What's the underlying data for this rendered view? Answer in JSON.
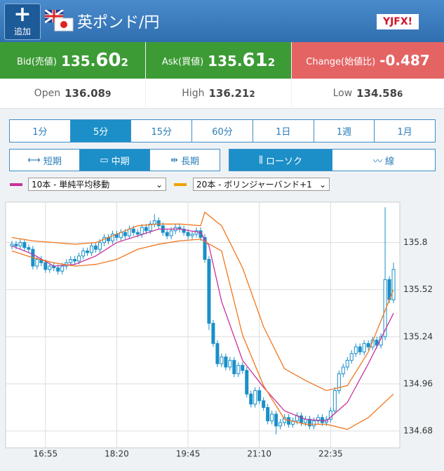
{
  "header": {
    "add_label": "追加",
    "pair": "英ポンド/円",
    "logo": "YJFX!"
  },
  "quotes": {
    "bid": {
      "label": "Bid(売値)",
      "value": [
        "135.",
        "60",
        "2"
      ]
    },
    "ask": {
      "label": "Ask(買値)",
      "value": [
        "135.",
        "61",
        "2"
      ]
    },
    "change": {
      "label": "Change(始値比)",
      "value": "-0.487"
    }
  },
  "stats": [
    {
      "label": "Open",
      "value": [
        "136.08",
        "9"
      ]
    },
    {
      "label": "High",
      "value": [
        "136.21",
        "2"
      ]
    },
    {
      "label": "Low",
      "value": [
        "134.58",
        "6"
      ]
    }
  ],
  "timeframes": {
    "items": [
      "1分",
      "5分",
      "15分",
      "60分",
      "1日",
      "1週",
      "1月"
    ],
    "selected": 1
  },
  "ranges": {
    "items": [
      "短期",
      "中期",
      "長期"
    ],
    "selected": 1
  },
  "styles": {
    "items": [
      "ローソク",
      "線"
    ],
    "selected": 0
  },
  "indicators": [
    {
      "label": "10本 - 単純平均移動",
      "color": "#c8329a"
    },
    {
      "label": "20本 - ボリンジャーバンド+1",
      "color": "#f0a000"
    }
  ],
  "chart_data": {
    "type": "candlestick",
    "color": "#1a8fc8",
    "x": [
      0,
      1,
      2,
      3,
      4,
      5,
      6,
      7,
      8,
      9,
      10,
      11,
      12,
      13,
      14,
      15,
      16,
      17,
      18,
      19,
      20,
      21,
      22,
      23,
      24,
      25,
      26,
      27,
      28,
      29,
      30,
      31,
      32,
      33,
      34,
      35,
      36,
      37,
      38,
      39,
      40,
      41,
      42,
      43,
      44,
      45,
      46,
      47,
      48,
      49,
      50,
      51,
      52,
      53,
      54,
      55,
      56,
      57,
      58,
      59,
      60,
      61,
      62,
      63,
      64,
      65,
      66,
      67,
      68,
      69,
      70,
      71,
      72,
      73,
      74,
      75,
      76,
      77,
      78,
      79,
      80,
      81,
      82,
      83,
      84,
      85,
      86,
      87,
      88,
      89,
      90,
      91
    ],
    "open": [
      135.78,
      135.79,
      135.78,
      135.8,
      135.77,
      135.76,
      135.66,
      135.7,
      135.68,
      135.64,
      135.66,
      135.65,
      135.63,
      135.66,
      135.68,
      135.7,
      135.69,
      135.72,
      135.75,
      135.74,
      135.78,
      135.76,
      135.8,
      135.83,
      135.81,
      135.85,
      135.83,
      135.86,
      135.84,
      135.88,
      135.86,
      135.85,
      135.89,
      135.87,
      135.91,
      135.93,
      135.9,
      135.86,
      135.84,
      135.87,
      135.89,
      135.88,
      135.86,
      135.84,
      135.85,
      135.87,
      135.83,
      135.7,
      135.32,
      135.2,
      135.08,
      135.12,
      135.06,
      135.1,
      135.02,
      135.07,
      135.04,
      134.9,
      134.84,
      134.92,
      134.86,
      134.82,
      134.74,
      134.78,
      134.71,
      134.73,
      134.76,
      134.72,
      134.74,
      134.77,
      134.73,
      134.75,
      134.71,
      134.74,
      134.76,
      134.73,
      134.75,
      134.8,
      134.92,
      135.02,
      135.06,
      135.1,
      135.14,
      135.18,
      135.15,
      135.2,
      135.18,
      135.22,
      135.19,
      135.24,
      135.58,
      135.46
    ],
    "high": [
      135.81,
      135.81,
      135.82,
      135.82,
      135.79,
      135.78,
      135.72,
      135.72,
      135.7,
      135.68,
      135.68,
      135.67,
      135.68,
      135.7,
      135.72,
      135.72,
      135.74,
      135.77,
      135.77,
      135.8,
      135.8,
      135.82,
      135.85,
      135.85,
      135.87,
      135.87,
      135.88,
      135.88,
      135.9,
      135.9,
      135.88,
      135.91,
      135.91,
      135.93,
      135.97,
      135.95,
      135.92,
      135.88,
      135.89,
      135.91,
      135.91,
      135.9,
      135.88,
      135.87,
      135.89,
      135.89,
      135.85,
      135.72,
      135.34,
      135.22,
      135.14,
      135.14,
      135.12,
      135.12,
      135.09,
      135.09,
      135.06,
      134.92,
      134.94,
      134.94,
      134.88,
      134.84,
      134.8,
      134.8,
      134.75,
      134.78,
      134.78,
      134.76,
      134.79,
      134.79,
      134.77,
      134.77,
      134.76,
      134.78,
      134.78,
      134.77,
      134.82,
      134.94,
      135.04,
      135.08,
      135.12,
      135.16,
      135.2,
      135.2,
      135.22,
      135.22,
      135.24,
      135.24,
      135.26,
      136.01,
      135.6,
      135.68
    ],
    "low": [
      135.76,
      135.76,
      135.76,
      135.75,
      135.74,
      135.64,
      135.64,
      135.66,
      135.62,
      135.62,
      135.63,
      135.61,
      135.61,
      135.64,
      135.66,
      135.67,
      135.67,
      135.7,
      135.72,
      135.72,
      135.74,
      135.74,
      135.78,
      135.79,
      135.79,
      135.81,
      135.81,
      135.82,
      135.82,
      135.84,
      135.83,
      135.83,
      135.85,
      135.85,
      135.89,
      135.88,
      135.84,
      135.82,
      135.82,
      135.85,
      135.86,
      135.84,
      135.82,
      135.82,
      135.83,
      135.81,
      135.68,
      135.28,
      135.18,
      135.06,
      135.06,
      135.04,
      135.04,
      135.0,
      135.0,
      135.02,
      134.88,
      134.82,
      134.82,
      134.84,
      134.8,
      134.72,
      134.72,
      134.66,
      134.69,
      134.71,
      134.7,
      134.7,
      134.72,
      134.71,
      134.71,
      134.69,
      134.69,
      134.72,
      134.71,
      134.71,
      134.73,
      134.78,
      134.9,
      135.0,
      135.04,
      135.08,
      135.12,
      135.13,
      135.13,
      135.16,
      135.16,
      135.17,
      135.17,
      135.22,
      135.44,
      135.44
    ],
    "close": [
      135.79,
      135.78,
      135.8,
      135.77,
      135.76,
      135.66,
      135.7,
      135.68,
      135.64,
      135.66,
      135.65,
      135.63,
      135.66,
      135.68,
      135.7,
      135.69,
      135.72,
      135.75,
      135.74,
      135.78,
      135.76,
      135.8,
      135.83,
      135.81,
      135.85,
      135.83,
      135.86,
      135.84,
      135.88,
      135.86,
      135.85,
      135.89,
      135.87,
      135.91,
      135.93,
      135.9,
      135.86,
      135.84,
      135.87,
      135.89,
      135.88,
      135.86,
      135.84,
      135.85,
      135.87,
      135.83,
      135.7,
      135.32,
      135.2,
      135.08,
      135.12,
      135.06,
      135.1,
      135.02,
      135.07,
      135.04,
      134.9,
      134.84,
      134.92,
      134.86,
      134.82,
      134.74,
      134.78,
      134.71,
      134.73,
      134.76,
      134.72,
      134.74,
      134.77,
      134.73,
      134.75,
      134.71,
      134.74,
      134.76,
      134.73,
      134.75,
      134.8,
      134.92,
      135.02,
      135.06,
      135.1,
      135.14,
      135.18,
      135.15,
      135.2,
      135.18,
      135.22,
      135.19,
      135.24,
      135.58,
      135.46,
      135.64
    ],
    "lines": [
      {
        "color": "#c8329a",
        "x": [
          0,
          5,
          10,
          15,
          20,
          25,
          30,
          35,
          40,
          45,
          47,
          50,
          55,
          60,
          65,
          70,
          75,
          80,
          85,
          91
        ],
        "values": [
          135.78,
          135.73,
          135.66,
          135.67,
          135.72,
          135.8,
          135.84,
          135.88,
          135.88,
          135.86,
          135.78,
          135.45,
          135.1,
          134.94,
          134.8,
          134.75,
          134.74,
          134.85,
          135.08,
          135.38
        ]
      },
      {
        "color": "#f07820",
        "x": [
          0,
          5,
          10,
          15,
          20,
          25,
          30,
          35,
          40,
          45,
          46,
          50,
          55,
          60,
          65,
          70,
          75,
          80,
          85,
          91
        ],
        "values": [
          135.83,
          135.81,
          135.8,
          135.79,
          135.8,
          135.85,
          135.9,
          135.91,
          135.91,
          135.9,
          135.98,
          135.9,
          135.65,
          135.3,
          135.05,
          134.98,
          134.92,
          134.95,
          135.15,
          135.52
        ]
      },
      {
        "color": "#f07820",
        "x": [
          0,
          5,
          10,
          15,
          20,
          25,
          30,
          35,
          40,
          45,
          50,
          55,
          60,
          65,
          70,
          75,
          80,
          85,
          91
        ],
        "values": [
          135.75,
          135.71,
          135.68,
          135.66,
          135.67,
          135.7,
          135.76,
          135.79,
          135.81,
          135.82,
          135.75,
          135.25,
          134.95,
          134.75,
          134.72,
          134.72,
          134.69,
          134.76,
          134.9
        ]
      }
    ],
    "xlim": [
      -1.5,
      92.5
    ],
    "xticks": [
      {
        "value": 8,
        "label": "16:55"
      },
      {
        "value": 25,
        "label": "18:20"
      },
      {
        "value": 42,
        "label": "19:45"
      },
      {
        "value": 59,
        "label": "21:10"
      },
      {
        "value": 76,
        "label": "22:35"
      }
    ],
    "ylim": [
      134.58,
      136.04
    ],
    "yticks": [
      134.68,
      134.96,
      135.24,
      135.52,
      135.8
    ],
    "grid": true
  }
}
